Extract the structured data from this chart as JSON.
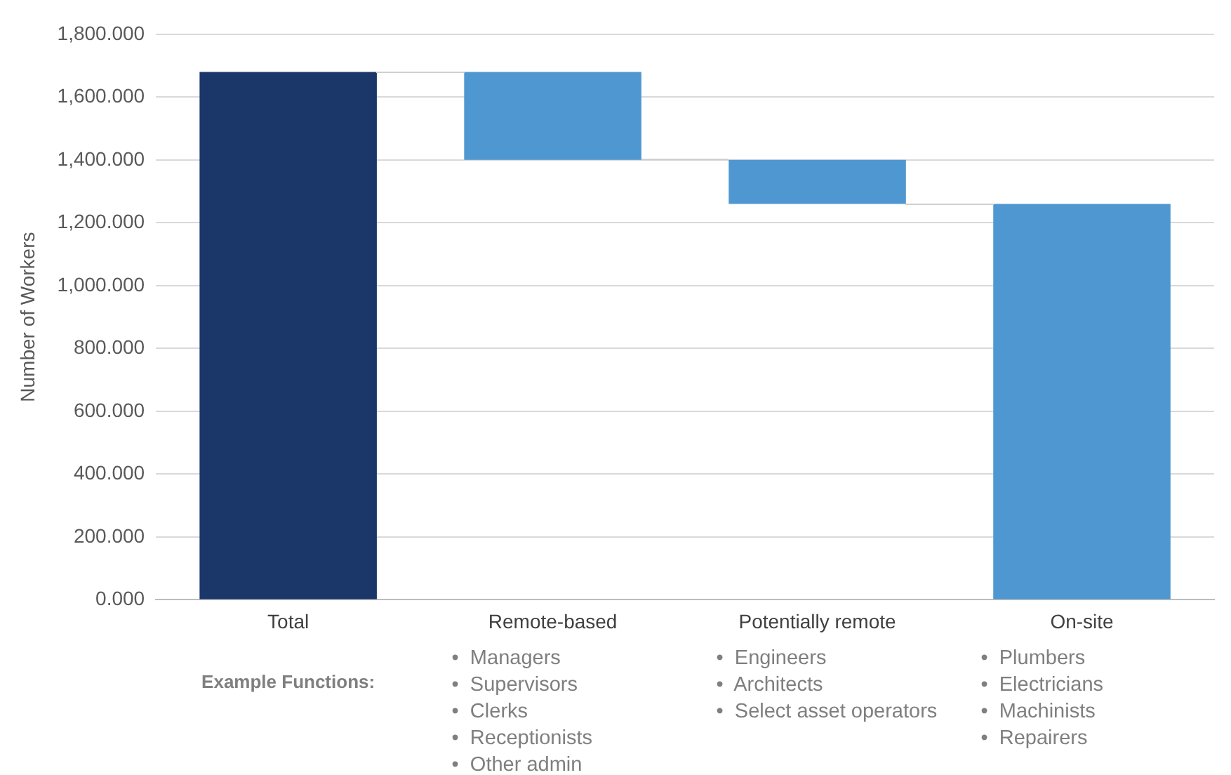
{
  "chart_data": {
    "type": "bar",
    "ylabel": "Number of Workers",
    "categories": [
      "Total",
      "Remote-based",
      "Potentially remote",
      "On-site"
    ],
    "values": [
      1680,
      280,
      140,
      1260
    ],
    "base": [
      0,
      1400,
      1260,
      0
    ],
    "colors": [
      "#1b3668",
      "#4f97d1",
      "#4f97d1",
      "#4f97d1"
    ],
    "ylim": [
      0,
      1800
    ],
    "yticks": [
      {
        "value": 0,
        "label": "0.000"
      },
      {
        "value": 200,
        "label": "200.000"
      },
      {
        "value": 400,
        "label": "400.000"
      },
      {
        "value": 600,
        "label": "600.000"
      },
      {
        "value": 800,
        "label": "800.000"
      },
      {
        "value": 1000,
        "label": "1,000.000"
      },
      {
        "value": 1200,
        "label": "1,200.000"
      },
      {
        "value": 1400,
        "label": "1,400.000"
      },
      {
        "value": 1600,
        "label": "1,600.000"
      },
      {
        "value": 1800,
        "label": "1,800.000"
      }
    ],
    "grid": "y",
    "legend": false,
    "annotations": [
      "Example Functions:",
      "•  Managers\n•  Supervisors\n•  Clerks\n•  Receptionists\n•  Other admin",
      "•  Engineers\n•  Architects\n•  Select asset operators",
      "•  Plumbers\n•  Electricians\n•  Machinists\n•  Repairers"
    ]
  }
}
